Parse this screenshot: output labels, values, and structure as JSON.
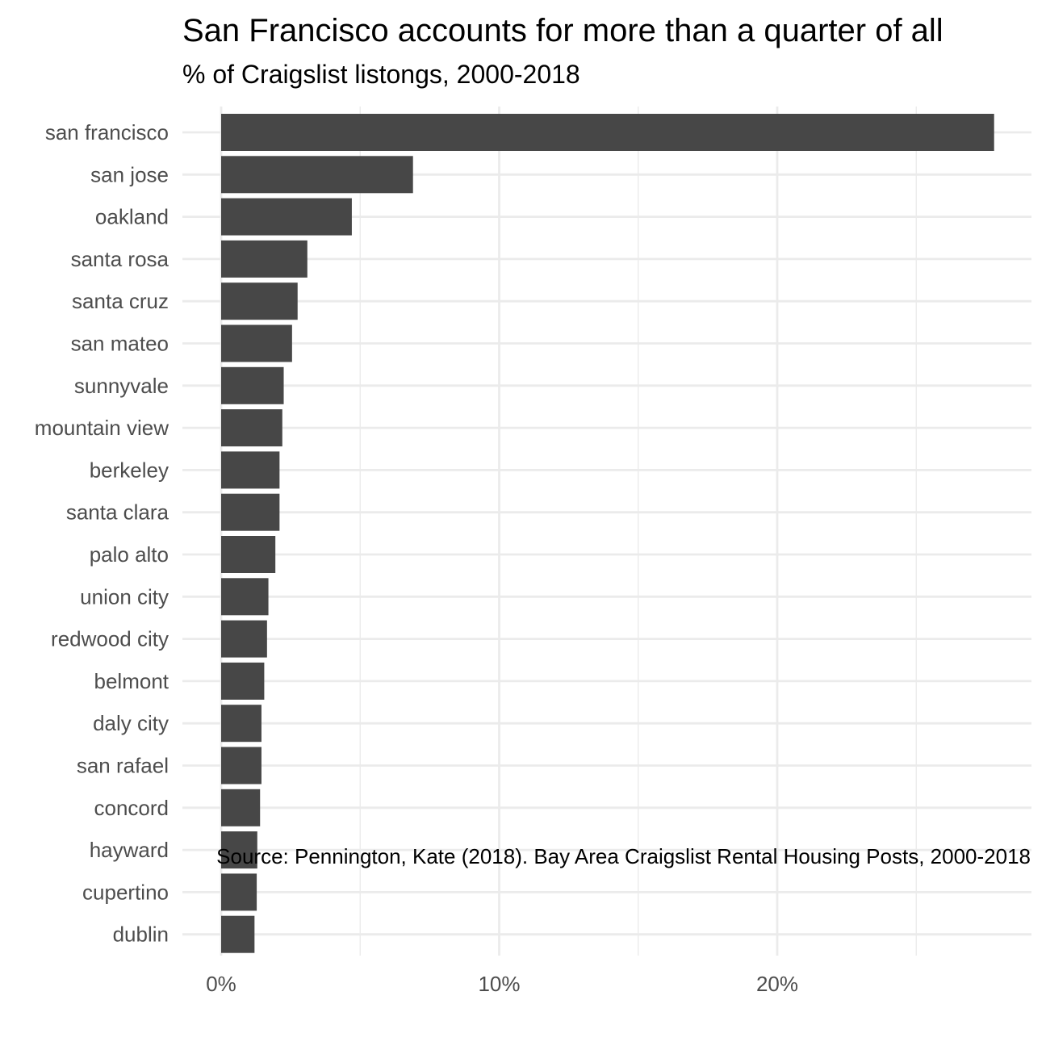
{
  "chart_data": {
    "type": "bar",
    "orientation": "horizontal",
    "title": "San Francisco accounts for more than a quarter of all",
    "subtitle": "% of Craigslist listongs, 2000-2018",
    "caption": "Source: Pennington, Kate (2018). Bay Area Craigslist Rental Housing Posts, 2000-2018",
    "xlabel": "",
    "ylabel": "",
    "categories": [
      "san francisco",
      "san jose",
      "oakland",
      "santa rosa",
      "santa cruz",
      "san mateo",
      "sunnyvale",
      "mountain view",
      "berkeley",
      "santa clara",
      "palo alto",
      "union city",
      "redwood city",
      "belmont",
      "daly city",
      "san rafael",
      "concord",
      "hayward",
      "cupertino",
      "dublin"
    ],
    "values": [
      27.8,
      6.9,
      4.7,
      3.1,
      2.75,
      2.55,
      2.25,
      2.2,
      2.1,
      2.1,
      1.95,
      1.7,
      1.65,
      1.55,
      1.45,
      1.45,
      1.4,
      1.3,
      1.28,
      1.2
    ],
    "value_unit": "percent",
    "xlim": [
      0,
      29.2
    ],
    "xticks": [
      0,
      10,
      20
    ],
    "xtick_labels": [
      "0%",
      "10%",
      "20%"
    ],
    "minor_gridlines": [
      5,
      15,
      25
    ],
    "grid": true,
    "bar_color": "#474747",
    "grid_color": "#ebebeb"
  }
}
